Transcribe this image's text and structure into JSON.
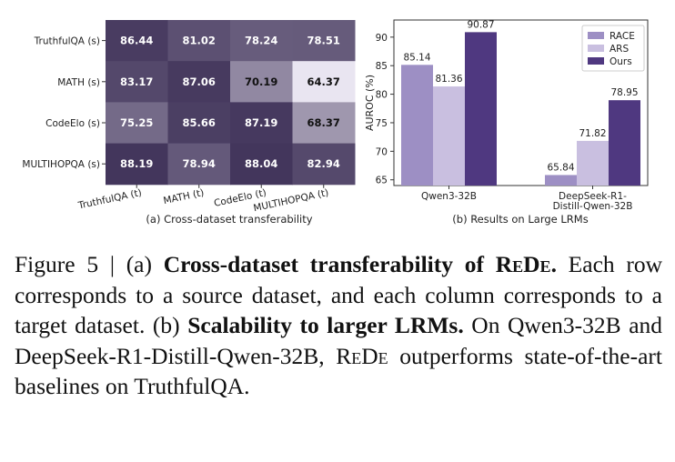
{
  "chart_data": [
    {
      "type": "heatmap",
      "rows": [
        "TruthfulQA (s)",
        "MATH (s)",
        "CodeElo (s)",
        "MULTIHOPQA (s)"
      ],
      "columns": [
        "TruthfulQA (t)",
        "MATH (t)",
        "CodeElo (t)",
        "MULTIHOPQA (t)"
      ],
      "values": [
        [
          86.44,
          81.02,
          78.24,
          78.51
        ],
        [
          83.17,
          87.06,
          70.19,
          64.37
        ],
        [
          75.25,
          85.66,
          87.19,
          68.37
        ],
        [
          88.19,
          78.94,
          88.04,
          82.94
        ]
      ],
      "value_range": [
        64.37,
        88.19
      ],
      "colors": {
        "low": "#e9e5f1",
        "high": "#43365c",
        "text_dark": "#111111",
        "text_light": "#ffffff"
      },
      "subtitle": "(a) Cross-dataset transferability"
    },
    {
      "type": "bar",
      "categories": [
        "Qwen3-32B",
        "DeepSeek-R1-Distill-Qwen-32B"
      ],
      "category_lines": [
        [
          "Qwen3-32B"
        ],
        [
          "DeepSeek-R1-",
          "Distill-Qwen-32B"
        ]
      ],
      "series": [
        {
          "name": "RACE",
          "values": [
            85.14,
            65.84
          ],
          "color": "#9d8fc4"
        },
        {
          "name": "ARS",
          "values": [
            81.36,
            71.82
          ],
          "color": "#c9bfe0"
        },
        {
          "name": "Ours",
          "values": [
            90.87,
            78.95
          ],
          "color": "#4f3880"
        }
      ],
      "ylabel": "AUROC (%)",
      "ylim": [
        64,
        93
      ],
      "yticks": [
        65,
        70,
        75,
        80,
        85,
        90
      ],
      "legend": "top-right",
      "subtitle": "(b) Results on Large LRMs"
    }
  ],
  "caption": {
    "figure_label": "Figure 5",
    "separator": "|",
    "part_a_marker": "(a)",
    "part_a_bold": "Cross-dataset transferability of",
    "method_name": "ReDe",
    "part_a_bold_end": ".",
    "part_a_text": " Each row corresponds to a source dataset, and each column corresponds to a target dataset.",
    "part_b_marker": "(b)",
    "part_b_bold": "Scalability to larger LRMs.",
    "part_b_text_1": " On Qwen3-32B and DeepSeek-R1-Distill-Qwen-32B, ",
    "part_b_text_2": " outperforms state-of-the-art baselines on TruthfulQA."
  }
}
